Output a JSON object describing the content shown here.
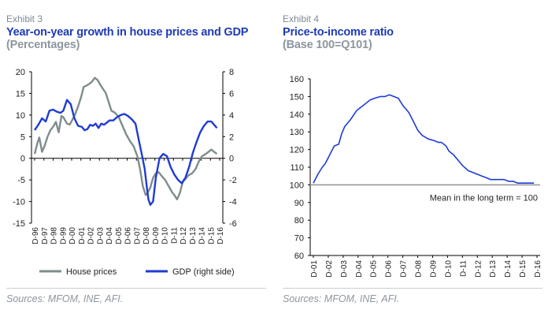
{
  "exhibits": [
    {
      "label": "Exhibit 3",
      "title": "Year-on-year growth in house prices and GDP",
      "subtitle": "(Percentages)",
      "sources": "Sources: MFOM, INE, AFI."
    },
    {
      "label": "Exhibit 4",
      "title": "Price-to-income ratio",
      "subtitle": "(Base 100=Q101)",
      "sources": "Sources: MFOM, INE, AFI."
    }
  ],
  "colors": {
    "house_prices": "#7f8c8d",
    "gdp": "#1f3bd6",
    "ratio": "#1f3bd6",
    "baseline": "#999999"
  },
  "chart_data": [
    {
      "type": "line",
      "x_ticks": [
        "D-96",
        "D-97",
        "D-98",
        "D-99",
        "D-00",
        "D-01",
        "D-02",
        "D-03",
        "D-04",
        "D-05",
        "D-06",
        "D-07",
        "D-08",
        "D-09",
        "D-10",
        "D-11",
        "D-12",
        "D-13",
        "D-14",
        "D-15",
        "D-16"
      ],
      "ylim": [
        -15,
        20
      ],
      "y_ticks": [
        -15,
        -10,
        -5,
        0,
        5,
        10,
        15,
        20
      ],
      "y2lim": [
        -6,
        8
      ],
      "y2_ticks": [
        -6,
        -4,
        -2,
        0,
        2,
        4,
        6,
        8
      ],
      "legend_position": "bottom",
      "series": [
        {
          "name": "House prices",
          "axis": "left",
          "x": [
            1996.9,
            1997.2,
            1997.4,
            1997.7,
            1998.0,
            1998.3,
            1998.6,
            1998.9,
            1999.2,
            1999.5,
            1999.8,
            2000.0,
            2000.4,
            2000.7,
            2001.0,
            2001.3,
            2001.6,
            2001.9,
            2002.2,
            2002.5,
            2002.8,
            2003.1,
            2003.4,
            2003.7,
            2004.0,
            2004.3,
            2004.6,
            2004.9,
            2005.2,
            2005.6,
            2006.0,
            2006.4,
            2006.8,
            2007.2,
            2007.6,
            2008.0,
            2008.3,
            2008.6,
            2008.9,
            2009.1,
            2009.4,
            2009.7,
            2010.0,
            2010.3,
            2010.6,
            2011.0,
            2011.4,
            2011.8,
            2012.0,
            2012.3,
            2012.6,
            2012.9,
            2013.2,
            2013.5,
            2013.9,
            2014.3,
            2014.7,
            2015.0,
            2015.4,
            2015.7,
            2016.0,
            2016.3,
            2016.6
          ],
          "y": [
            1.0,
            3.5,
            4.8,
            1.5,
            3.0,
            5.0,
            6.5,
            7.3,
            8.4,
            6.0,
            9.8,
            9.5,
            8.0,
            7.8,
            9.0,
            10.3,
            12.0,
            14.0,
            16.5,
            16.8,
            17.2,
            17.7,
            18.6,
            18.1,
            17.0,
            16.0,
            15.0,
            13.0,
            11.0,
            10.5,
            9.5,
            7.5,
            5.5,
            4.0,
            2.8,
            0.5,
            -2.5,
            -6.5,
            -8.5,
            -8.0,
            -6.8,
            -4.5,
            -3.5,
            -3.2,
            -4.0,
            -5.0,
            -6.5,
            -8.0,
            -8.5,
            -9.5,
            -8.0,
            -5.5,
            -4.8,
            -4.0,
            -3.5,
            -2.5,
            -0.5,
            0.5,
            1.0,
            1.5,
            2.0,
            1.5,
            1.0
          ]
        },
        {
          "name": "GDP (right side)",
          "axis": "right",
          "x": [
            1996.9,
            1997.3,
            1997.7,
            1998.1,
            1998.5,
            1998.9,
            1999.3,
            1999.7,
            2000.0,
            2000.4,
            2000.8,
            2001.2,
            2001.6,
            2002.0,
            2002.3,
            2002.6,
            2002.9,
            2003.2,
            2003.5,
            2003.8,
            2004.1,
            2004.4,
            2004.7,
            2005.0,
            2005.4,
            2005.8,
            2006.2,
            2006.6,
            2007.0,
            2007.4,
            2007.8,
            2008.2,
            2008.5,
            2008.8,
            2009.0,
            2009.2,
            2009.4,
            2009.7,
            2010.0,
            2010.4,
            2010.8,
            2011.2,
            2011.6,
            2012.0,
            2012.4,
            2012.8,
            2013.2,
            2013.6,
            2014.0,
            2014.4,
            2014.8,
            2015.2,
            2015.6,
            2016.0,
            2016.3,
            2016.6
          ],
          "y": [
            2.6,
            3.1,
            3.7,
            3.4,
            4.4,
            4.5,
            4.3,
            4.2,
            4.4,
            5.4,
            5.0,
            3.7,
            3.0,
            2.9,
            2.6,
            2.7,
            3.1,
            3.0,
            3.2,
            2.8,
            3.2,
            3.1,
            3.3,
            3.5,
            3.5,
            3.8,
            4.0,
            4.1,
            3.9,
            3.6,
            3.2,
            1.5,
            0.3,
            -1.0,
            -2.5,
            -3.8,
            -4.3,
            -4.0,
            -1.8,
            0.0,
            0.4,
            0.2,
            -0.8,
            -1.5,
            -2.0,
            -2.3,
            -1.8,
            -0.8,
            0.5,
            1.5,
            2.4,
            3.0,
            3.4,
            3.4,
            3.1,
            2.8
          ]
        }
      ]
    },
    {
      "type": "line",
      "x_ticks": [
        "D-01",
        "D-02",
        "D-03",
        "D-04",
        "D-05",
        "D-06",
        "D-07",
        "D-08",
        "D-09",
        "D-10",
        "D-11",
        "D-12",
        "D-13",
        "D-14",
        "D-15",
        "D-16"
      ],
      "ylim": [
        60,
        160
      ],
      "y_ticks": [
        60,
        70,
        80,
        90,
        100,
        110,
        120,
        130,
        140,
        150,
        160
      ],
      "reference_line": {
        "value": 100,
        "label": "Mean in the long term = 100"
      },
      "series": [
        {
          "x": [
            2001.9,
            2002.2,
            2002.5,
            2002.7,
            2003.0,
            2003.3,
            2003.6,
            2003.8,
            2004.0,
            2004.4,
            2004.8,
            2005.1,
            2005.4,
            2005.7,
            2006.0,
            2006.4,
            2006.7,
            2007.0,
            2007.3,
            2007.6,
            2007.9,
            2008.3,
            2008.6,
            2008.9,
            2009.2,
            2009.6,
            2010.0,
            2010.3,
            2010.5,
            2010.8,
            2011.0,
            2011.3,
            2011.6,
            2011.9,
            2012.3,
            2012.6,
            2012.9,
            2013.2,
            2013.5,
            2013.8,
            2014.1,
            2014.4,
            2014.7,
            2015.0,
            2015.3,
            2015.6,
            2015.9,
            2016.2,
            2016.5,
            2016.7
          ],
          "y": [
            101,
            106,
            110,
            112,
            117,
            122,
            123,
            129,
            133,
            137,
            142,
            144,
            146,
            148,
            149,
            150,
            150,
            151,
            150,
            149,
            145,
            141,
            136,
            131,
            128,
            126,
            125,
            124,
            124,
            122,
            119,
            117,
            114,
            111,
            108,
            107,
            106,
            105,
            104,
            103,
            103,
            103,
            103,
            102,
            102,
            101,
            101,
            101,
            101,
            101
          ]
        }
      ]
    }
  ]
}
